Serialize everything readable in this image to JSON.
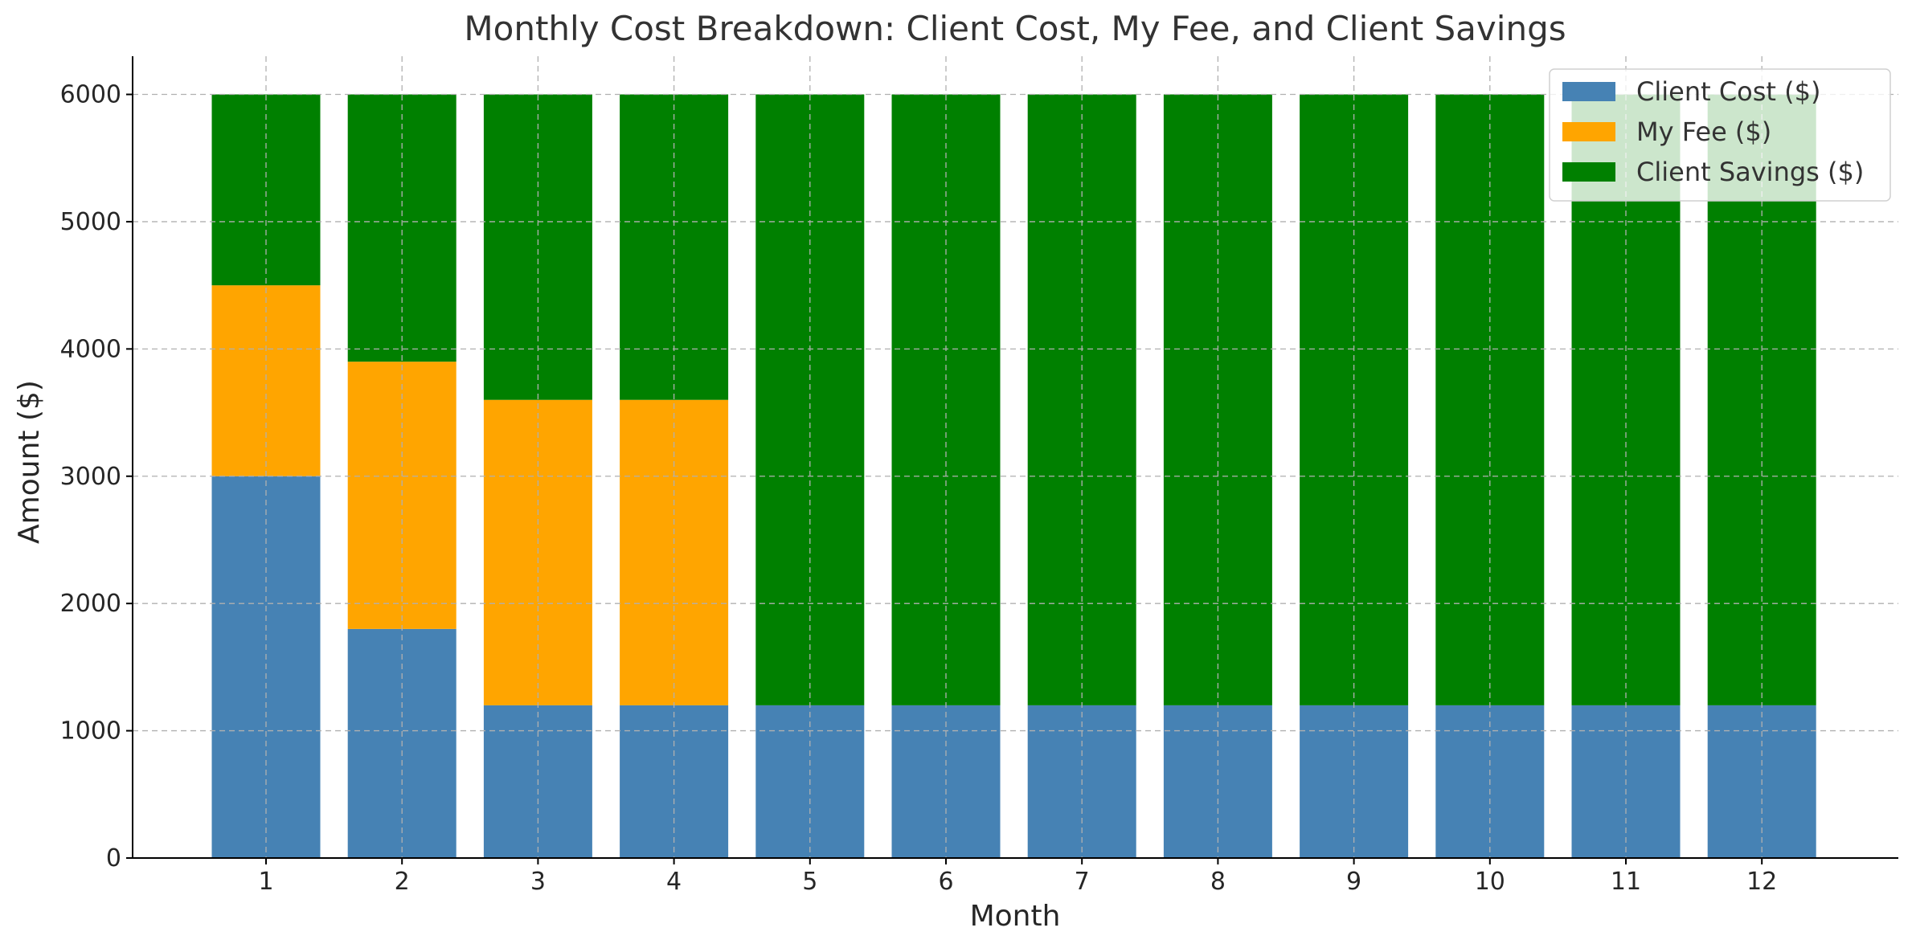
{
  "chart_data": {
    "type": "bar",
    "stacked": true,
    "title": "Monthly Cost Breakdown: Client Cost, My Fee, and Client Savings",
    "xlabel": "Month",
    "ylabel": "Amount ($)",
    "categories": [
      "1",
      "2",
      "3",
      "4",
      "5",
      "6",
      "7",
      "8",
      "9",
      "10",
      "11",
      "12"
    ],
    "series": [
      {
        "name": "Client Cost ($)",
        "color": "#4682b4",
        "values": [
          3000,
          1800,
          1200,
          1200,
          1200,
          1200,
          1200,
          1200,
          1200,
          1200,
          1200,
          1200
        ]
      },
      {
        "name": "My Fee ($)",
        "color": "#ffa500",
        "values": [
          1500,
          2100,
          2400,
          2400,
          0,
          0,
          0,
          0,
          0,
          0,
          0,
          0
        ]
      },
      {
        "name": "Client Savings ($)",
        "color": "#008000",
        "values": [
          1500,
          2100,
          2400,
          2400,
          4800,
          4800,
          4800,
          4800,
          4800,
          4800,
          4800,
          4800
        ]
      }
    ],
    "ylim": [
      0,
      6300
    ],
    "yticks": [
      0,
      1000,
      2000,
      3000,
      4000,
      5000,
      6000
    ],
    "grid": true,
    "legend": "top-right"
  }
}
